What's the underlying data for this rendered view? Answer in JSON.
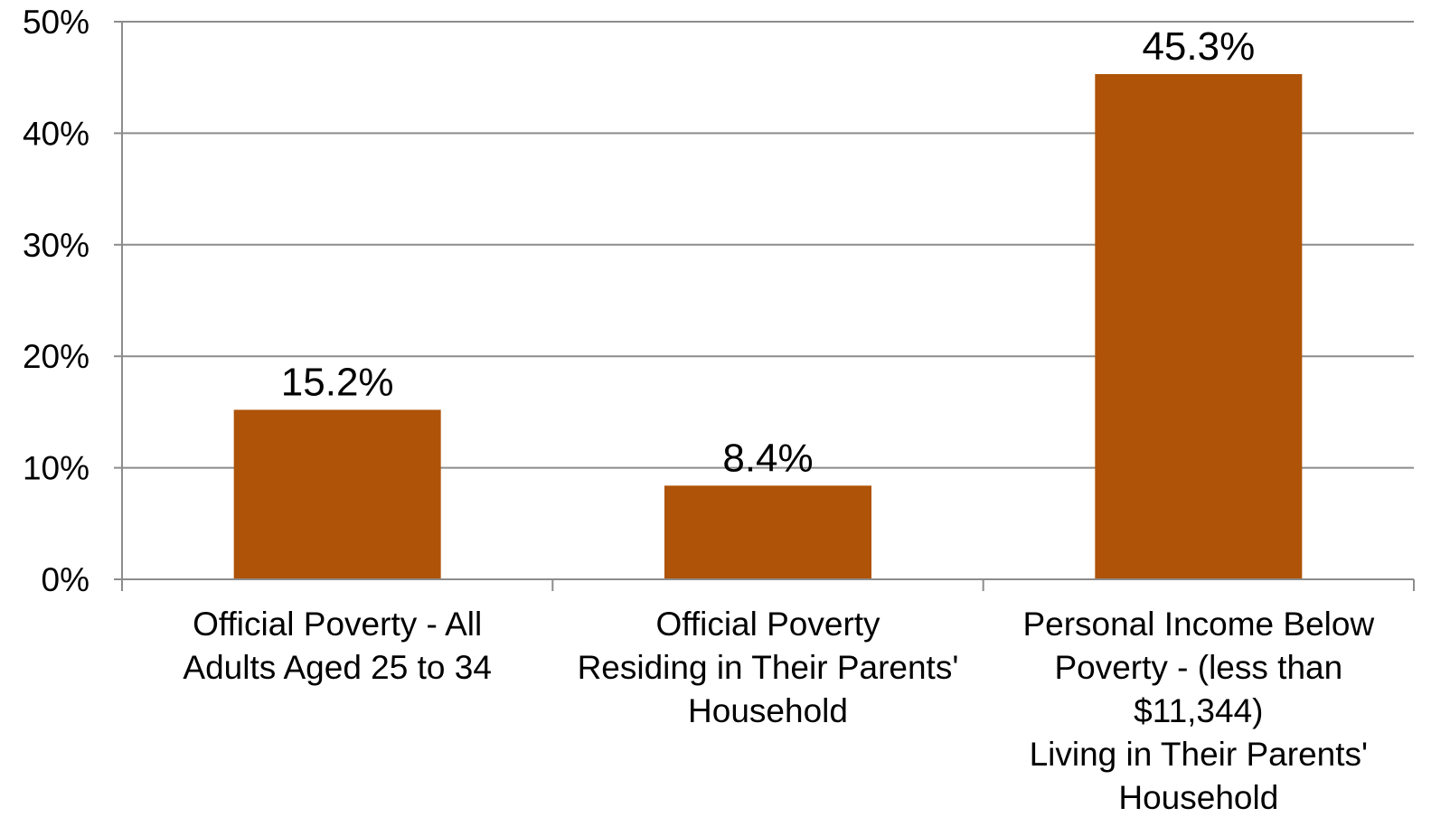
{
  "chart_data": {
    "type": "bar",
    "categories": [
      [
        "Official Poverty - All",
        "Adults Aged 25 to 34"
      ],
      [
        "Official Poverty",
        "Residing in Their Parents'",
        "Household"
      ],
      [
        "Personal Income Below",
        "Poverty  - (less than",
        "$11,344)",
        "Living in Their Parents'",
        "Household"
      ]
    ],
    "values": [
      15.2,
      8.4,
      45.3
    ],
    "data_labels": [
      "15.2%",
      "8.4%",
      "45.3%"
    ],
    "ylim": [
      0,
      50
    ],
    "y_ticks": [
      0,
      10,
      20,
      30,
      40,
      50
    ],
    "y_tick_labels": [
      "0%",
      "10%",
      "20%",
      "30%",
      "40%",
      "50%"
    ],
    "grid": true,
    "legend": "none",
    "title": "",
    "xlabel": "",
    "ylabel": "",
    "colors": {
      "bar": "#AE5307",
      "grid": "#8C8C8C",
      "axis": "#8C8C8C",
      "text": "#000000"
    }
  }
}
